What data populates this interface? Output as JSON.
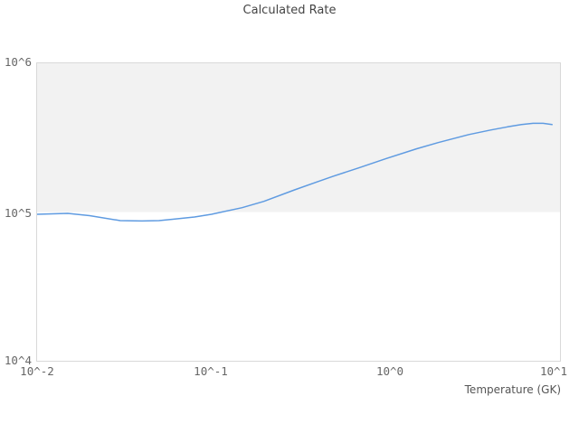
{
  "title": "Calculated Rate",
  "x_axis": {
    "label": "Temperature (GK)",
    "tick_labels": [
      "10^-2",
      "10^-1",
      "10^0",
      "10^1"
    ]
  },
  "y_axis": {
    "tick_labels": [
      "10^6",
      "10^5",
      "10^4"
    ]
  },
  "colors": {
    "line": "#5f9be1",
    "band_shaded": "#f2f2f2",
    "plot_background": "#ffffff",
    "plot_border": "#d9d9d9",
    "tick_text": "#666666",
    "title_text": "#444444"
  },
  "chart_data": {
    "type": "line",
    "title": "Calculated Rate",
    "xlabel": "Temperature (GK)",
    "ylabel": "",
    "x_scale": "log",
    "y_scale": "log",
    "xlim": [
      0.01,
      10
    ],
    "ylim": [
      10000,
      1000000
    ],
    "x_tick_labels": [
      "10^-2",
      "10^-1",
      "10^0",
      "10^1"
    ],
    "y_tick_labels": [
      "10^4",
      "10^5",
      "10^6"
    ],
    "legend": "none",
    "grid": "off",
    "background_bands": [
      {
        "y_from": 100000,
        "y_to": 1000000,
        "color": "#f2f2f2"
      }
    ],
    "series": [
      {
        "name": "Calculated Rate",
        "x": [
          0.01,
          0.015,
          0.02,
          0.03,
          0.04,
          0.05,
          0.06,
          0.08,
          0.1,
          0.15,
          0.2,
          0.3,
          0.4,
          0.5,
          0.7,
          1.0,
          1.5,
          2.0,
          2.5,
          3.0,
          4.0,
          5.0,
          6.0,
          7.0,
          8.0,
          9.0
        ],
        "y": [
          96600,
          97900,
          94600,
          87600,
          87000,
          87600,
          89400,
          92600,
          96600,
          107000,
          118000,
          141000,
          159000,
          174000,
          198000,
          228000,
          266000,
          293000,
          314000,
          332000,
          356000,
          374000,
          387000,
          395000,
          395000,
          387000
        ]
      }
    ]
  }
}
